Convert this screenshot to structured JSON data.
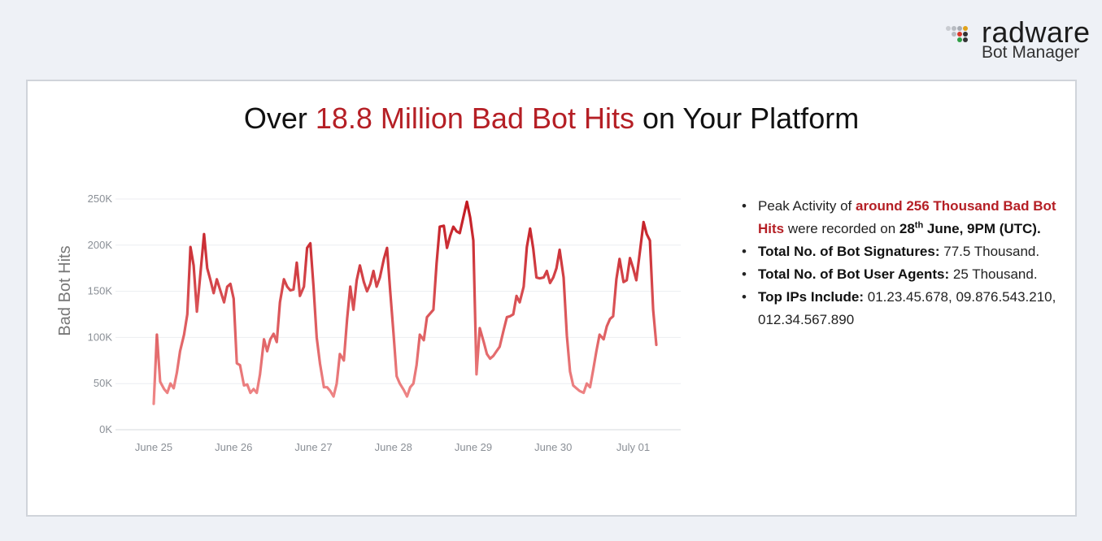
{
  "logo": {
    "word": "radware",
    "sub": "Bot Manager"
  },
  "title": {
    "pre": "Over ",
    "highlight": "18.8 Million Bad Bot Hits",
    "post": " on Your Platform"
  },
  "facts": {
    "peak": {
      "pre": "Peak Activity of ",
      "highlight": "around 256 Thousand Bad Bot Hits",
      "mid": " were recorded on ",
      "date_day": "28",
      "date_sup": "th",
      "date_rest": " June, 9PM (UTC)."
    },
    "signatures": {
      "label": "Total No. of Bot Signatures:",
      "value": " 77.5 Thousand."
    },
    "user_agents": {
      "label": "Total No. of Bot User Agents:",
      "value": " 25 Thousand."
    },
    "top_ips": {
      "label": "Top IPs Include:",
      "value": " 01.23.45.678, 09.876.543.210, 012.34.567.890"
    }
  },
  "chart_data": {
    "type": "line",
    "title": "Over 18.8 Million Bad Bot Hits on Your Platform",
    "ylabel": "Bad Bot Hits",
    "xlabel": "",
    "ylim": [
      0,
      250000
    ],
    "y_ticks": [
      "0K",
      "50K",
      "100K",
      "150K",
      "200K",
      "250K"
    ],
    "x_ticks": [
      "June 25",
      "June 26",
      "June 27",
      "June 28",
      "June 29",
      "June 30",
      "July 01"
    ],
    "grid": true,
    "color_start": "#f08a8a",
    "color_end": "#c0141c",
    "x_unit": "days since June 25",
    "series": [
      {
        "name": "Bad Bot Hits",
        "points": [
          [
            0.0,
            28000
          ],
          [
            0.04,
            103000
          ],
          [
            0.08,
            52000
          ],
          [
            0.13,
            44000
          ],
          [
            0.17,
            40000
          ],
          [
            0.21,
            50000
          ],
          [
            0.25,
            45000
          ],
          [
            0.29,
            62000
          ],
          [
            0.33,
            85000
          ],
          [
            0.38,
            103000
          ],
          [
            0.42,
            125000
          ],
          [
            0.46,
            198000
          ],
          [
            0.5,
            178000
          ],
          [
            0.54,
            128000
          ],
          [
            0.58,
            165000
          ],
          [
            0.63,
            212000
          ],
          [
            0.67,
            175000
          ],
          [
            0.71,
            162000
          ],
          [
            0.75,
            148000
          ],
          [
            0.79,
            163000
          ],
          [
            0.83,
            152000
          ],
          [
            0.88,
            138000
          ],
          [
            0.92,
            155000
          ],
          [
            0.96,
            158000
          ],
          [
            1.0,
            142000
          ],
          [
            1.04,
            72000
          ],
          [
            1.08,
            70000
          ],
          [
            1.13,
            48000
          ],
          [
            1.17,
            49000
          ],
          [
            1.21,
            40000
          ],
          [
            1.25,
            44000
          ],
          [
            1.29,
            40000
          ],
          [
            1.33,
            60000
          ],
          [
            1.38,
            98000
          ],
          [
            1.42,
            85000
          ],
          [
            1.46,
            98000
          ],
          [
            1.5,
            104000
          ],
          [
            1.54,
            95000
          ],
          [
            1.58,
            138000
          ],
          [
            1.63,
            163000
          ],
          [
            1.67,
            155000
          ],
          [
            1.71,
            151000
          ],
          [
            1.75,
            152000
          ],
          [
            1.79,
            181000
          ],
          [
            1.83,
            145000
          ],
          [
            1.88,
            155000
          ],
          [
            1.92,
            197000
          ],
          [
            1.96,
            202000
          ],
          [
            2.0,
            155000
          ],
          [
            2.04,
            100000
          ],
          [
            2.08,
            72000
          ],
          [
            2.13,
            46000
          ],
          [
            2.17,
            46000
          ],
          [
            2.21,
            42000
          ],
          [
            2.25,
            36000
          ],
          [
            2.29,
            50000
          ],
          [
            2.33,
            82000
          ],
          [
            2.38,
            75000
          ],
          [
            2.42,
            120000
          ],
          [
            2.46,
            155000
          ],
          [
            2.5,
            130000
          ],
          [
            2.54,
            162000
          ],
          [
            2.58,
            178000
          ],
          [
            2.63,
            160000
          ],
          [
            2.67,
            150000
          ],
          [
            2.71,
            158000
          ],
          [
            2.75,
            172000
          ],
          [
            2.79,
            155000
          ],
          [
            2.83,
            165000
          ],
          [
            2.88,
            185000
          ],
          [
            2.92,
            197000
          ],
          [
            2.96,
            150000
          ],
          [
            3.0,
            105000
          ],
          [
            3.04,
            58000
          ],
          [
            3.08,
            50000
          ],
          [
            3.13,
            43000
          ],
          [
            3.17,
            36000
          ],
          [
            3.21,
            46000
          ],
          [
            3.25,
            50000
          ],
          [
            3.29,
            70000
          ],
          [
            3.33,
            103000
          ],
          [
            3.38,
            97000
          ],
          [
            3.42,
            122000
          ],
          [
            3.46,
            126000
          ],
          [
            3.5,
            130000
          ],
          [
            3.54,
            180000
          ],
          [
            3.58,
            220000
          ],
          [
            3.63,
            221000
          ],
          [
            3.67,
            197000
          ],
          [
            3.71,
            210000
          ],
          [
            3.75,
            220000
          ],
          [
            3.79,
            215000
          ],
          [
            3.83,
            213000
          ],
          [
            3.88,
            232000
          ],
          [
            3.92,
            247000
          ],
          [
            3.96,
            230000
          ],
          [
            4.0,
            205000
          ],
          [
            4.04,
            60000
          ],
          [
            4.08,
            110000
          ],
          [
            4.13,
            95000
          ],
          [
            4.17,
            82000
          ],
          [
            4.21,
            77000
          ],
          [
            4.25,
            80000
          ],
          [
            4.29,
            85000
          ],
          [
            4.33,
            90000
          ],
          [
            4.38,
            108000
          ],
          [
            4.42,
            122000
          ],
          [
            4.46,
            123000
          ],
          [
            4.5,
            125000
          ],
          [
            4.54,
            145000
          ],
          [
            4.58,
            138000
          ],
          [
            4.63,
            155000
          ],
          [
            4.67,
            198000
          ],
          [
            4.71,
            218000
          ],
          [
            4.75,
            196000
          ],
          [
            4.79,
            165000
          ],
          [
            4.83,
            164000
          ],
          [
            4.88,
            165000
          ],
          [
            4.92,
            172000
          ],
          [
            4.96,
            159000
          ],
          [
            5.0,
            165000
          ],
          [
            5.04,
            175000
          ],
          [
            5.08,
            195000
          ],
          [
            5.13,
            165000
          ],
          [
            5.17,
            102000
          ],
          [
            5.21,
            63000
          ],
          [
            5.25,
            48000
          ],
          [
            5.29,
            45000
          ],
          [
            5.33,
            42000
          ],
          [
            5.38,
            40000
          ],
          [
            5.42,
            50000
          ],
          [
            5.46,
            46000
          ],
          [
            5.5,
            65000
          ],
          [
            5.54,
            85000
          ],
          [
            5.58,
            103000
          ],
          [
            5.63,
            98000
          ],
          [
            5.67,
            112000
          ],
          [
            5.71,
            120000
          ],
          [
            5.75,
            123000
          ],
          [
            5.79,
            163000
          ],
          [
            5.83,
            185000
          ],
          [
            5.88,
            160000
          ],
          [
            5.92,
            162000
          ],
          [
            5.96,
            186000
          ],
          [
            6.0,
            175000
          ],
          [
            6.04,
            162000
          ],
          [
            6.08,
            190000
          ],
          [
            6.13,
            225000
          ],
          [
            6.17,
            212000
          ],
          [
            6.21,
            205000
          ],
          [
            6.25,
            130000
          ],
          [
            6.29,
            92000
          ]
        ]
      }
    ]
  }
}
